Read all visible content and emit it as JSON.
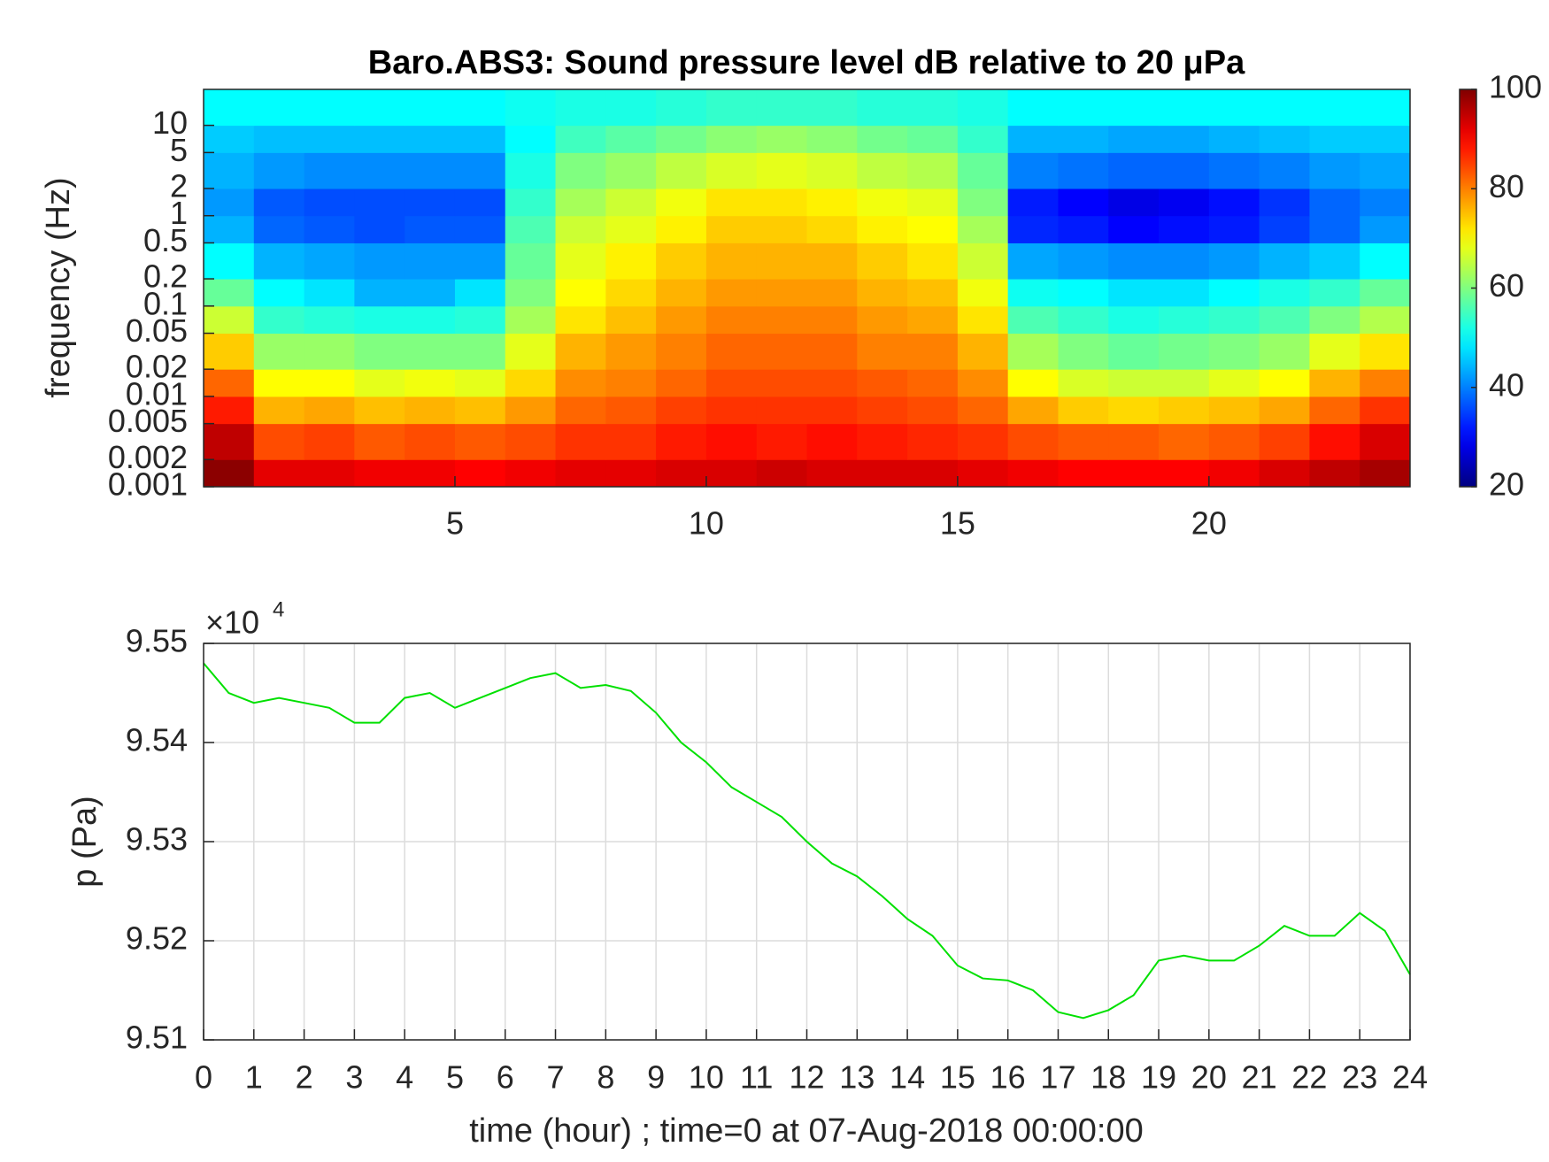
{
  "chart_data": [
    {
      "type": "heatmap",
      "title": "Baro.ABS3: Sound pressure level dB relative to 20 μPa",
      "ylabel": "frequency (Hz)",
      "log_y": true,
      "colormap": "jet",
      "xlim": [
        0,
        24
      ],
      "xticks": [
        5,
        10,
        15,
        20
      ],
      "ylim": [
        0.001,
        25
      ],
      "yticks": [
        0.001,
        0.002,
        0.005,
        0.01,
        0.02,
        0.05,
        0.1,
        0.2,
        0.5,
        1,
        2,
        5,
        10
      ],
      "x_bins": [
        0,
        1,
        2,
        3,
        4,
        5,
        6,
        7,
        8,
        9,
        10,
        11,
        12,
        13,
        14,
        15,
        16,
        17,
        18,
        19,
        20,
        21,
        22,
        23,
        24
      ],
      "y_bins": [
        0.001,
        0.002,
        0.005,
        0.01,
        0.02,
        0.05,
        0.1,
        0.2,
        0.5,
        1,
        2,
        5,
        10,
        25
      ],
      "z": [
        [
          99,
          92,
          92,
          91,
          91,
          90,
          91,
          92,
          92,
          93,
          93,
          94,
          93,
          93,
          93,
          92,
          91,
          90,
          90,
          90,
          91,
          93,
          95,
          97
        ],
        [
          95,
          84,
          85,
          83,
          84,
          83,
          84,
          86,
          86,
          88,
          89,
          88,
          89,
          88,
          87,
          86,
          84,
          83,
          83,
          82,
          83,
          85,
          89,
          93
        ],
        [
          88,
          76,
          77,
          75,
          76,
          75,
          78,
          82,
          83,
          85,
          86,
          86,
          86,
          85,
          84,
          82,
          77,
          74,
          73,
          74,
          75,
          77,
          82,
          86
        ],
        [
          82,
          70,
          70,
          68,
          69,
          68,
          73,
          79,
          80,
          82,
          84,
          84,
          84,
          83,
          82,
          79,
          70,
          67,
          66,
          66,
          68,
          70,
          76,
          80
        ],
        [
          74,
          62,
          62,
          60,
          60,
          60,
          68,
          76,
          78,
          80,
          82,
          82,
          82,
          80,
          80,
          76,
          63,
          60,
          58,
          59,
          60,
          62,
          68,
          72
        ],
        [
          66,
          54,
          53,
          52,
          52,
          53,
          63,
          72,
          75,
          78,
          80,
          80,
          80,
          78,
          77,
          72,
          56,
          54,
          52,
          53,
          54,
          56,
          60,
          64
        ],
        [
          58,
          50,
          48,
          44,
          44,
          48,
          60,
          70,
          73,
          76,
          78,
          78,
          78,
          76,
          75,
          69,
          51,
          50,
          48,
          48,
          50,
          52,
          54,
          58
        ],
        [
          50,
          44,
          43,
          42,
          42,
          42,
          58,
          68,
          71,
          74,
          76,
          76,
          76,
          74,
          72,
          66,
          43,
          42,
          41,
          41,
          42,
          44,
          46,
          50
        ],
        [
          44,
          38,
          37,
          36,
          37,
          37,
          56,
          66,
          68,
          71,
          74,
          74,
          73,
          71,
          70,
          63,
          33,
          32,
          30,
          31,
          32,
          35,
          38,
          42
        ],
        [
          42,
          37,
          36,
          36,
          36,
          36,
          54,
          63,
          66,
          69,
          72,
          72,
          71,
          69,
          68,
          60,
          32,
          30,
          28,
          29,
          31,
          34,
          38,
          40
        ],
        [
          44,
          42,
          41,
          41,
          41,
          41,
          52,
          60,
          62,
          65,
          67,
          68,
          67,
          65,
          64,
          58,
          40,
          39,
          38,
          38,
          39,
          40,
          42,
          43
        ],
        [
          46,
          45,
          45,
          45,
          45,
          45,
          50,
          55,
          57,
          59,
          61,
          62,
          61,
          59,
          58,
          54,
          44,
          44,
          43,
          43,
          44,
          45,
          46,
          46
        ],
        [
          50,
          50,
          50,
          50,
          50,
          50,
          51,
          52,
          52,
          53,
          54,
          54,
          54,
          53,
          53,
          52,
          50,
          50,
          50,
          50,
          50,
          50,
          50,
          50
        ]
      ],
      "clim": [
        20,
        100
      ],
      "cticks": [
        20,
        40,
        60,
        80,
        100
      ]
    },
    {
      "type": "line",
      "xlabel": "time (hour) ; time=0 at 07-Aug-2018 00:00:00",
      "ylabel": "p (Pa)",
      "y_multiplier": "×10",
      "y_exponent": "4",
      "color": "#00e000",
      "grid": true,
      "xlim": [
        0,
        24
      ],
      "xticks": [
        0,
        1,
        2,
        3,
        4,
        5,
        6,
        7,
        8,
        9,
        10,
        11,
        12,
        13,
        14,
        15,
        16,
        17,
        18,
        19,
        20,
        21,
        22,
        23,
        24
      ],
      "ylim": [
        95100,
        95500
      ],
      "yticks": [
        {
          "value": 95100,
          "label": "9.51"
        },
        {
          "value": 95200,
          "label": "9.52"
        },
        {
          "value": 95300,
          "label": "9.53"
        },
        {
          "value": 95400,
          "label": "9.54"
        },
        {
          "value": 95500,
          "label": "9.55"
        }
      ],
      "x": [
        0,
        0.5,
        1,
        1.5,
        2,
        2.5,
        3,
        3.5,
        4,
        4.5,
        5,
        5.5,
        6,
        6.5,
        7,
        7.5,
        8,
        8.5,
        9,
        9.5,
        10,
        10.5,
        11,
        11.5,
        12,
        12.5,
        13,
        13.5,
        14,
        14.5,
        15,
        15.5,
        16,
        16.5,
        17,
        17.5,
        18,
        18.5,
        19,
        19.5,
        20,
        20.5,
        21,
        21.5,
        22,
        22.5,
        23,
        23.5,
        24
      ],
      "values": [
        95480,
        95450,
        95440,
        95445,
        95440,
        95435,
        95420,
        95420,
        95445,
        95450,
        95435,
        95445,
        95455,
        95465,
        95470,
        95455,
        95458,
        95452,
        95430,
        95400,
        95380,
        95355,
        95340,
        95325,
        95300,
        95278,
        95265,
        95245,
        95222,
        95205,
        95175,
        95162,
        95160,
        95150,
        95128,
        95122,
        95130,
        95145,
        95180,
        95185,
        95180,
        95180,
        95195,
        95215,
        95205,
        95205,
        95228,
        95210,
        95166
      ]
    }
  ]
}
